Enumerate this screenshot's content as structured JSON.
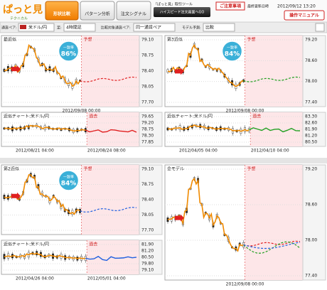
{
  "header": {
    "logo": "ぱっと見",
    "logo_sub": "テクニカル",
    "tabs": [
      "形状比較",
      "パターン分析",
      "注文シグナル"
    ],
    "tool_label": "『ぱっと見』取引ツール",
    "go_button": "ハイスピード注文画面へGO",
    "notice": "ご注意事項",
    "updated_label": "最終更新日時",
    "updated": "2012/09/12 13:20",
    "manual": "操作マニュアル"
  },
  "controls": {
    "pair_label": "通貨ペア:",
    "pair": "米ドル/円",
    "bar_label": "足:",
    "bar": "4時間足",
    "compare_label": "比較対象通貨ペア:",
    "compare": "同一通貨ペア",
    "model_label": "モデル予測:",
    "model": "比較"
  },
  "panels": [
    {
      "title": "最近似",
      "badge": "一致率",
      "rate": "86%",
      "zone": "予想",
      "line_color": "#e02020",
      "yticks": [
        {
          "value": 79.1,
          "label": "79.10"
        },
        {
          "value": 78.75,
          "label": "78.75"
        },
        {
          "value": 78.4,
          "label": "78.40"
        },
        {
          "value": 78.05,
          "label": "78.05"
        },
        {
          "value": 77.7,
          "label": "77.70"
        }
      ],
      "dates": [
        "2012/09/08 00:00"
      ]
    },
    {
      "title": "近似チャート:米ドル/円",
      "zone": "過去",
      "line_color": "#e02020",
      "yticks": [
        {
          "value": 79.65,
          "label": "79.65"
        },
        {
          "value": 79.2,
          "label": "79.20"
        },
        {
          "value": 78.75,
          "label": "78.75"
        },
        {
          "value": 78.3,
          "label": "78.30"
        },
        {
          "value": 77.85,
          "label": "77.85"
        }
      ],
      "dates": [
        "2012/08/21 04:00",
        "2012/08/24 08:00"
      ]
    },
    {
      "title": "第3近似",
      "badge": "一致率",
      "rate": "84%",
      "zone": "予想",
      "line_color": "#22a022",
      "yticks": [
        {
          "value": 79.2,
          "label": "79.20"
        },
        {
          "value": 78.6,
          "label": "78.60"
        },
        {
          "value": 78,
          "label": "78.00"
        },
        {
          "value": 77.4,
          "label": "77.40"
        }
      ],
      "dates": [
        "2012/09/08 00:00"
      ]
    },
    {
      "title": "近似チャート:米ドル/円",
      "zone": "過去",
      "line_color": "#22a022",
      "yticks": [
        {
          "value": 83.3,
          "label": "83.30"
        },
        {
          "value": 82.6,
          "label": "82.60"
        },
        {
          "value": 81.9,
          "label": "81.90"
        },
        {
          "value": 81.2,
          "label": "81.20"
        },
        {
          "value": 80.5,
          "label": "80.50"
        }
      ],
      "dates": [
        "2012/04/05 04:00",
        "2012/04/10 04:00"
      ]
    },
    {
      "title": "第2近似",
      "badge": "一致率",
      "rate": "84%",
      "zone": "予想",
      "line_color": "#2060e0",
      "yticks": [
        {
          "value": 79.1,
          "label": "79.10"
        },
        {
          "value": 78.75,
          "label": "78.75"
        },
        {
          "value": 78.4,
          "label": "78.40"
        },
        {
          "value": 78.05,
          "label": "78.05"
        },
        {
          "value": 77.7,
          "label": "77.70"
        }
      ],
      "dates": []
    },
    {
      "title": "近似チャート:米ドル/円",
      "zone": "過去",
      "line_color": "#2060e0",
      "yticks": [
        {
          "value": 81.9,
          "label": "81.90"
        },
        {
          "value": 81.2,
          "label": "81.20"
        },
        {
          "value": 80.5,
          "label": "80.50"
        },
        {
          "value": 79.8,
          "label": "79.80"
        },
        {
          "value": 79.1,
          "label": "79.10"
        }
      ],
      "dates": [
        "2012/04/26 04:00",
        "2012/05/01 04:00"
      ]
    },
    {
      "title": "全モデル",
      "zone": "予想",
      "line_color": "#e02020",
      "yticks": [
        {
          "value": 79.2,
          "label": "79.20"
        },
        {
          "value": 78.6,
          "label": "78.60"
        },
        {
          "value": 78,
          "label": "78.00"
        },
        {
          "value": 77.4,
          "label": "77.40"
        }
      ],
      "dates": [
        "2012/09/08 00:00"
      ]
    }
  ]
}
